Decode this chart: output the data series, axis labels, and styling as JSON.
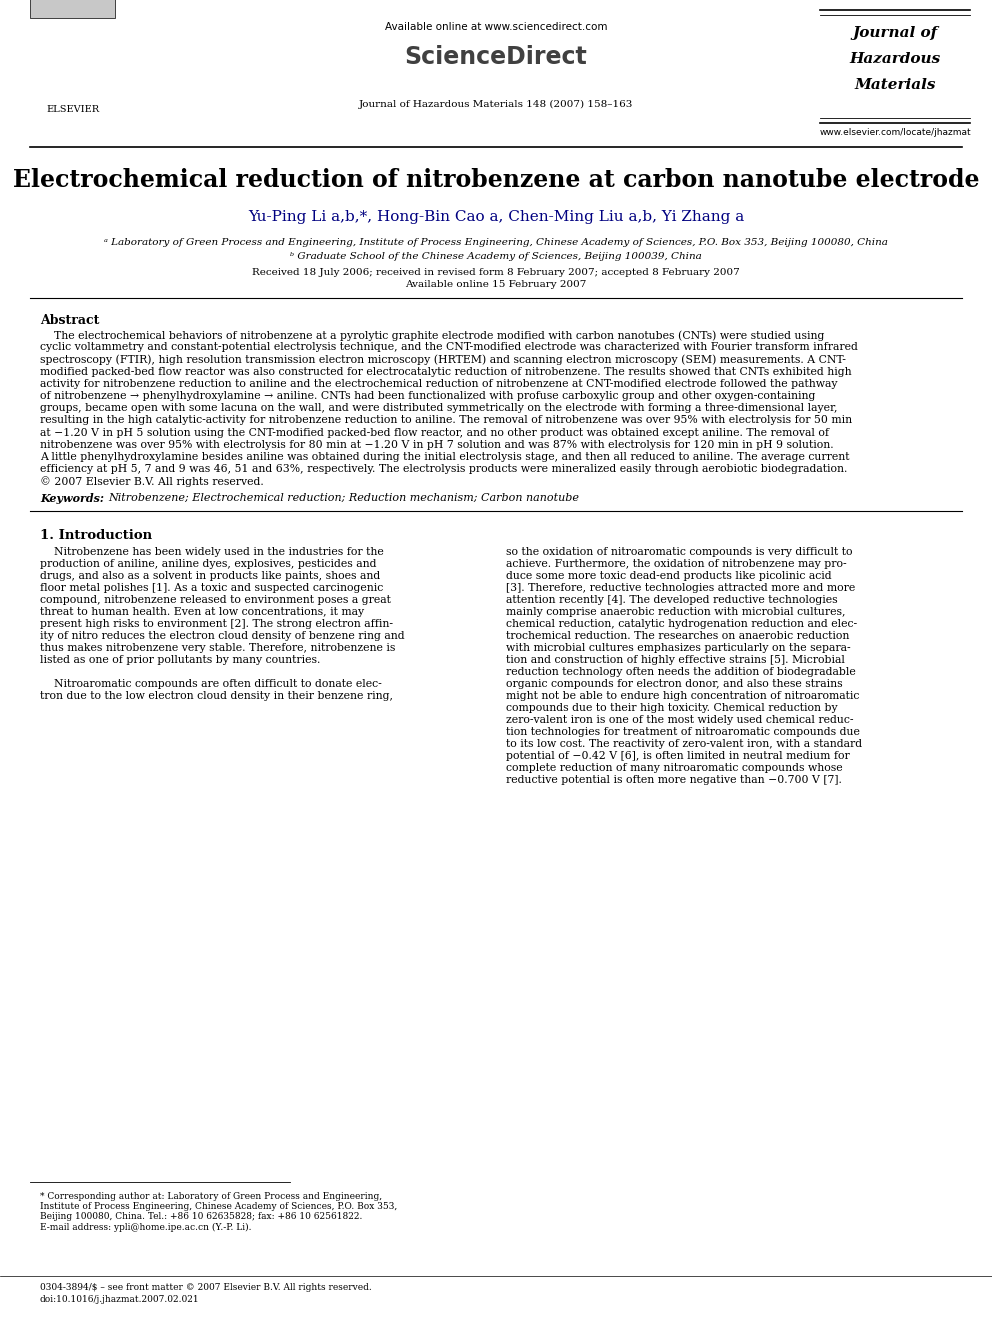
{
  "page_width": 9.92,
  "page_height": 13.23,
  "bg_color": "#ffffff",
  "header": {
    "elsevier_text": "ELSEVIER",
    "available_online": "Available online at www.sciencedirect.com",
    "sciencedirect": "ScienceDirect",
    "journal_name_line1": "Journal of",
    "journal_name_line2": "Hazardous",
    "journal_name_line3": "Materials",
    "journal_ref": "Journal of Hazardous Materials 148 (2007) 158–163",
    "journal_url": "www.elsevier.com/locate/jhazmat"
  },
  "article_title": "Electrochemical reduction of nitrobenzene at carbon nanotube electrode",
  "authors_plain": "Yu-Ping Li a,b,*, Hong-Bin Cao a, Chen-Ming Liu a,b, Yi Zhang a",
  "affiliation_a": "ᵃ Laboratory of Green Process and Engineering, Institute of Process Engineering, Chinese Academy of Sciences, P.O. Box 353, Beijing 100080, China",
  "affiliation_b": "ᵇ Graduate School of the Chinese Academy of Sciences, Beijing 100039, China",
  "received": "Received 18 July 2006; received in revised form 8 February 2007; accepted 8 February 2007",
  "available": "Available online 15 February 2007",
  "abstract_title": "Abstract",
  "keywords_label": "Keywords:",
  "keywords": "Nitrobenzene; Electrochemical reduction; Reduction mechanism; Carbon nanotube",
  "section1_title": "1. Introduction",
  "footnote_email": "E-mail address: ypli@home.ipe.ac.cn (Y.-P. Li).",
  "bottom_line1": "0304-3894/$ – see front matter © 2007 Elsevier B.V. All rights reserved.",
  "bottom_line2": "doi:10.1016/j.jhazmat.2007.02.021"
}
